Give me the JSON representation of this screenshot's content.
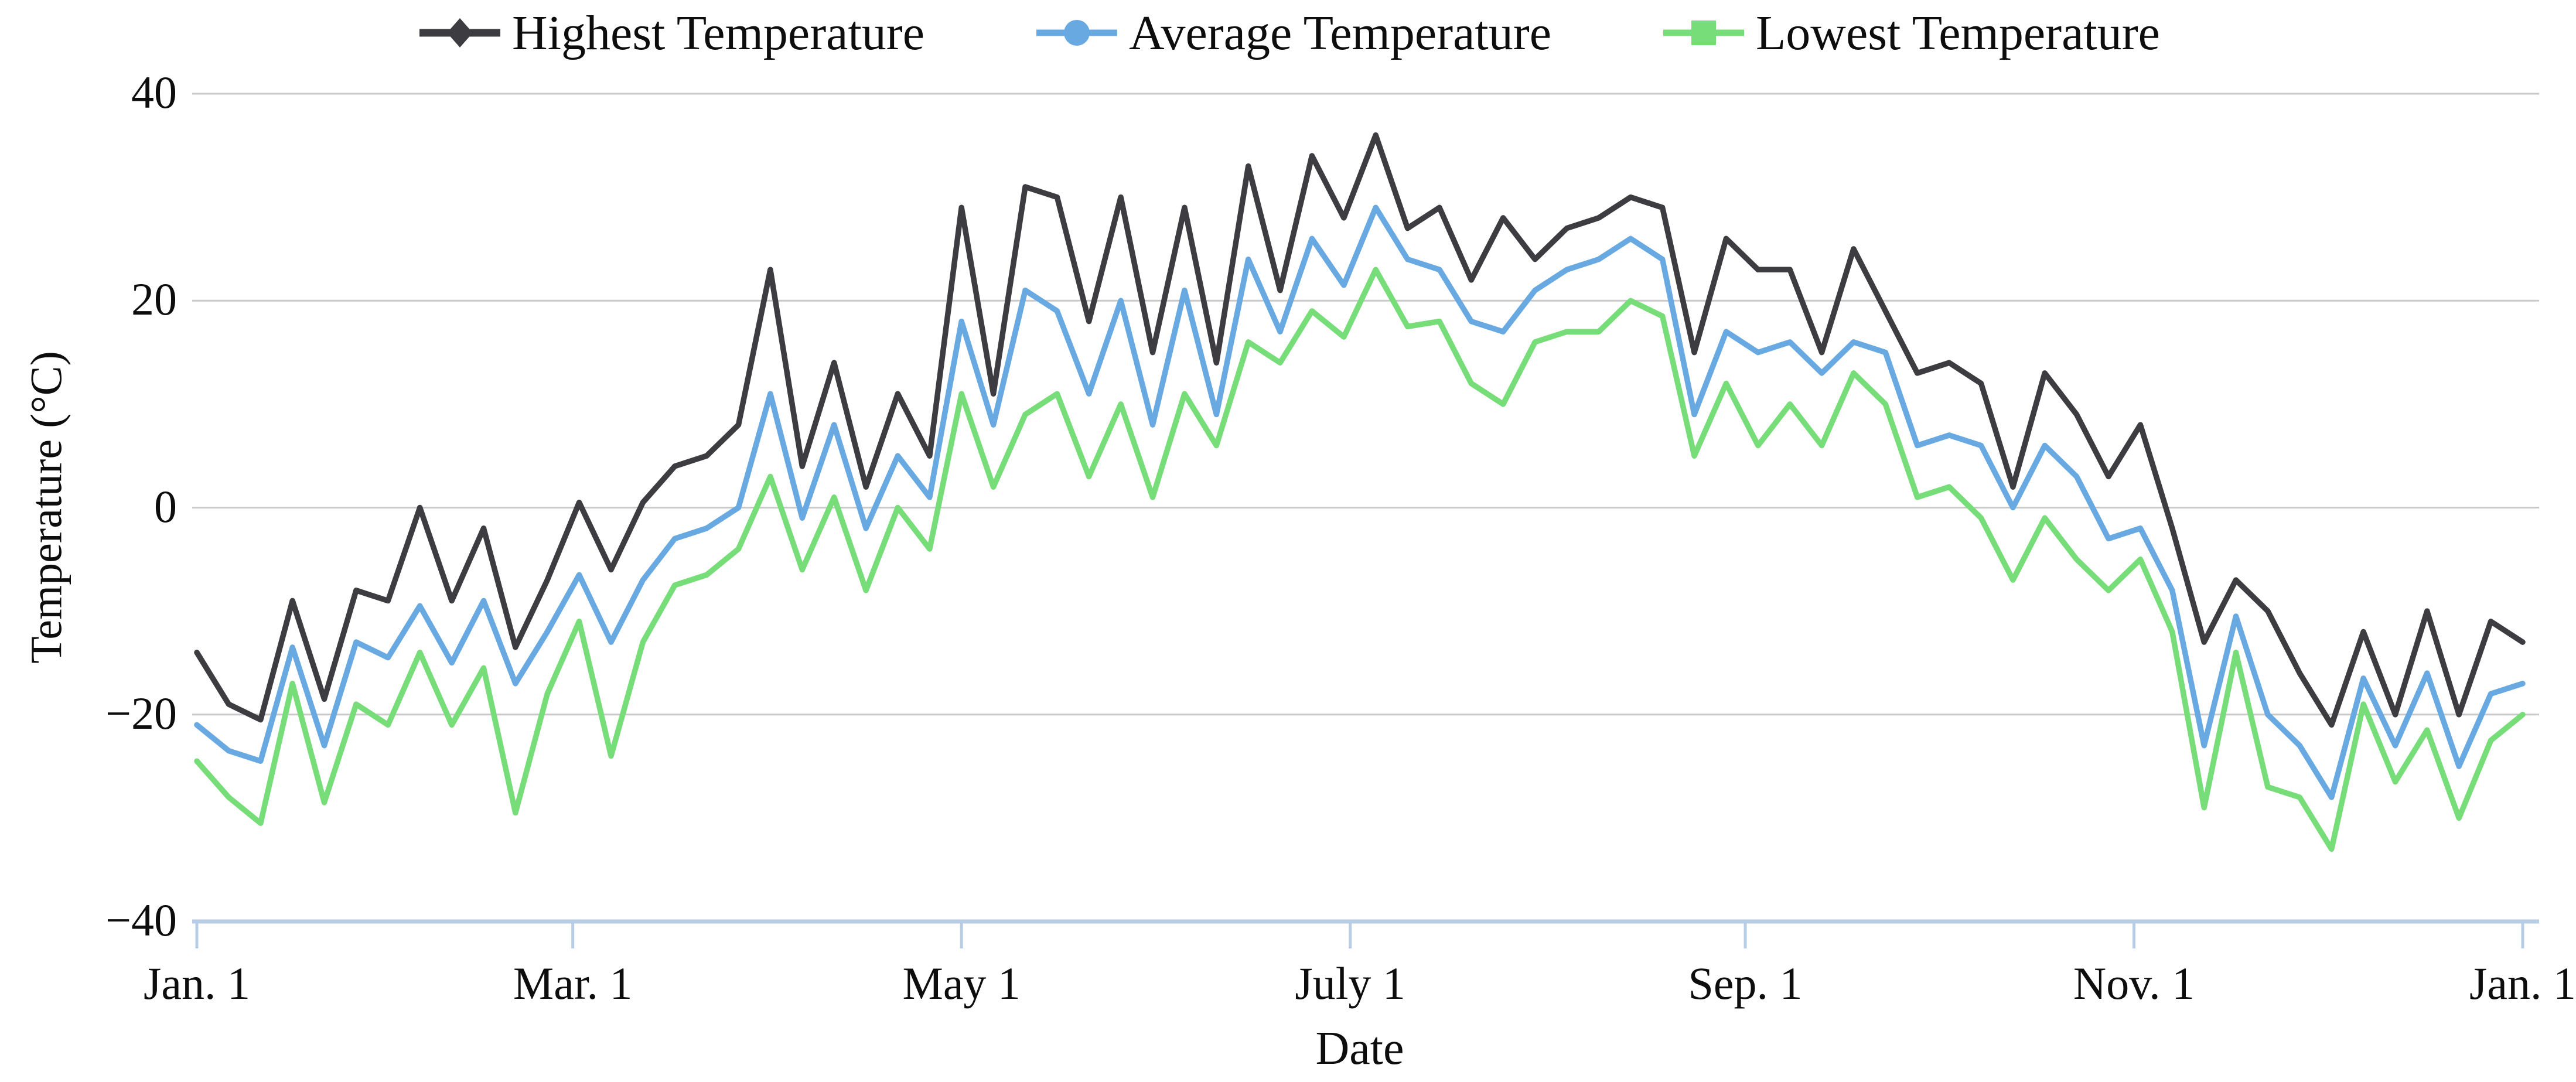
{
  "colors": {
    "highest": "#3d3d41",
    "average": "#68a9e2",
    "lowest": "#77dd79",
    "gridline": "#c9c9c9",
    "axis": "#b6cde5",
    "text": "#0d0d0d"
  },
  "y_axis": {
    "title": "Temperature (°C)",
    "tick_labels": [
      "40",
      "20",
      "0",
      "−20",
      "−40"
    ],
    "tick_values": [
      40,
      20,
      0,
      -20,
      -40
    ]
  },
  "x_axis": {
    "title": "Date",
    "tick_labels": [
      "Jan. 1",
      "Mar. 1",
      "May 1",
      "July 1",
      "Sep. 1",
      "Nov. 1",
      "Jan. 1"
    ],
    "tick_days": [
      0,
      59,
      120,
      181,
      243,
      304,
      365
    ]
  },
  "chart_data": {
    "type": "line",
    "title": "",
    "xlabel": "Date",
    "ylabel": "Temperature (°C)",
    "ylim": [
      -40,
      40
    ],
    "xlim_days": [
      0,
      365
    ],
    "grid": "horizontal",
    "legend_position": "top",
    "x_units": "day of year (Jan. 1 = 0)",
    "x_days": [
      0,
      5,
      10,
      15,
      20,
      25,
      30,
      35,
      40,
      45,
      50,
      55,
      60,
      65,
      70,
      75,
      80,
      85,
      90,
      95,
      100,
      105,
      110,
      115,
      120,
      125,
      130,
      135,
      140,
      145,
      150,
      155,
      160,
      165,
      170,
      175,
      180,
      185,
      190,
      195,
      200,
      205,
      210,
      215,
      220,
      225,
      230,
      235,
      240,
      245,
      250,
      255,
      260,
      265,
      270,
      275,
      280,
      285,
      290,
      295,
      300,
      305,
      310,
      315,
      320,
      325,
      330,
      335,
      340,
      345,
      350,
      355,
      360,
      365
    ],
    "series": [
      {
        "id": "highest",
        "name": "Highest Temperature",
        "marker": "diamond",
        "color": "#3d3d41",
        "values": [
          -14,
          -19,
          -20.5,
          -9,
          -18.5,
          -8,
          -9,
          0,
          -9,
          -2,
          -13.5,
          -7,
          0.5,
          -6,
          0.5,
          4,
          5,
          8,
          23,
          4,
          14,
          2,
          11,
          5,
          29,
          11,
          31,
          30,
          18,
          30,
          15,
          29,
          14,
          33,
          21,
          34,
          28,
          36,
          27,
          29,
          22,
          28,
          24,
          27,
          28,
          30,
          29,
          15,
          26,
          23,
          23,
          15,
          25,
          19,
          13,
          14,
          12,
          2,
          13,
          9,
          3,
          8,
          -2,
          -13,
          -7,
          -10,
          -16,
          -21,
          -12,
          -20,
          -10,
          -20,
          -11,
          -13
        ]
      },
      {
        "id": "average",
        "name": "Average Temperature",
        "marker": "circle",
        "color": "#68a9e2",
        "values": [
          -21,
          -23.5,
          -24.5,
          -13.5,
          -23,
          -13,
          -14.5,
          -9.5,
          -15,
          -9,
          -17,
          -12,
          -6.5,
          -13,
          -7,
          -3,
          -2,
          0,
          11,
          -1,
          8,
          -2,
          5,
          1,
          18,
          8,
          21,
          19,
          11,
          20,
          8,
          21,
          9,
          24,
          17,
          26,
          21.5,
          29,
          24,
          23,
          18,
          17,
          21,
          23,
          24,
          26,
          24,
          9,
          17,
          15,
          16,
          13,
          16,
          15,
          6,
          7,
          6,
          0,
          6,
          3,
          -3,
          -2,
          -8,
          -23,
          -10.5,
          -20,
          -23,
          -28,
          -16.5,
          -23,
          -16,
          -25,
          -18,
          -17
        ]
      },
      {
        "id": "lowest",
        "name": "Lowest Temperature",
        "marker": "square",
        "color": "#77dd79",
        "values": [
          -24.5,
          -28,
          -30.5,
          -17,
          -28.5,
          -19,
          -21,
          -14,
          -21,
          -15.5,
          -29.5,
          -18,
          -11,
          -24,
          -13,
          -7.5,
          -6.5,
          -4,
          3,
          -6,
          1,
          -8,
          0,
          -4,
          11,
          2,
          9,
          11,
          3,
          10,
          1,
          11,
          6,
          16,
          14,
          19,
          16.5,
          23,
          17.5,
          18,
          12,
          10,
          16,
          17,
          17,
          20,
          18.5,
          5,
          12,
          6,
          10,
          6,
          13,
          10,
          1,
          2,
          -1,
          -7,
          -1,
          -5,
          -8,
          -5,
          -12,
          -29,
          -14,
          -27,
          -28,
          -33,
          -19,
          -26.5,
          -21.5,
          -30,
          -22.5,
          -20
        ]
      }
    ]
  }
}
